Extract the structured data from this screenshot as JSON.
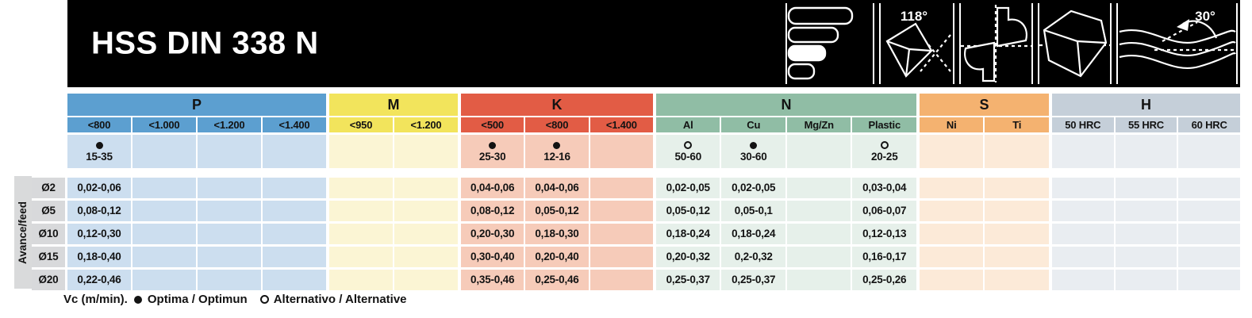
{
  "header": {
    "title": "HSS DIN 338 N",
    "icon_labels": {
      "point_angle": "118°",
      "helix_angle": "30°"
    }
  },
  "row_axis": {
    "label": "Avance/feed",
    "diameters": [
      "Ø2",
      "Ø5",
      "Ø10",
      "Ø15",
      "Ø20"
    ]
  },
  "vc_note": "Vc (m/min).",
  "legend": {
    "optima_marker": "filled-dot",
    "optima_label": "Optima / Optimun",
    "alternative_marker": "open-dot",
    "alternative_label": "Alternativo / Alternative"
  },
  "materials_table": {
    "groups": [
      {
        "name": "P",
        "header_color": "#5c9fd0",
        "body_color": "#ccdeef",
        "columns": [
          "<800",
          "<1.000",
          "<1.200",
          "<1.400"
        ],
        "vc": [
          {
            "marker": "filled-dot",
            "value": "15-35"
          },
          null,
          null,
          null
        ],
        "rows": [
          [
            "0,02-0,06",
            "",
            "",
            ""
          ],
          [
            "0,08-0,12",
            "",
            "",
            ""
          ],
          [
            "0,12-0,30",
            "",
            "",
            ""
          ],
          [
            "0,18-0,40",
            "",
            "",
            ""
          ],
          [
            "0,22-0,46",
            "",
            "",
            ""
          ]
        ]
      },
      {
        "name": "M",
        "header_color": "#f2e45c",
        "body_color": "#fbf5d4",
        "columns": [
          "<950",
          "<1.200"
        ],
        "vc": [
          null,
          null
        ],
        "rows": [
          [
            "",
            ""
          ],
          [
            "",
            ""
          ],
          [
            "",
            ""
          ],
          [
            "",
            ""
          ],
          [
            "",
            ""
          ]
        ]
      },
      {
        "name": "K",
        "header_color": "#e25c45",
        "body_color": "#f6cbb9",
        "columns": [
          "<500",
          "<800",
          "<1.400"
        ],
        "vc": [
          {
            "marker": "filled-dot",
            "value": "25-30"
          },
          {
            "marker": "filled-dot",
            "value": "12-16"
          },
          null
        ],
        "rows": [
          [
            "0,04-0,06",
            "0,04-0,06",
            ""
          ],
          [
            "0,08-0,12",
            "0,05-0,12",
            ""
          ],
          [
            "0,20-0,30",
            "0,18-0,30",
            ""
          ],
          [
            "0,30-0,40",
            "0,20-0,40",
            ""
          ],
          [
            "0,35-0,46",
            "0,25-0,46",
            ""
          ]
        ]
      },
      {
        "name": "N",
        "header_color": "#90bda5",
        "body_color": "#e6f0ea",
        "columns": [
          "Al",
          "Cu",
          "Mg/Zn",
          "Plastic"
        ],
        "vc": [
          {
            "marker": "open-dot",
            "value": "50-60"
          },
          {
            "marker": "filled-dot",
            "value": "30-60"
          },
          null,
          {
            "marker": "open-dot",
            "value": "20-25"
          }
        ],
        "rows": [
          [
            "0,02-0,05",
            "0,02-0,05",
            "",
            "0,03-0,04"
          ],
          [
            "0,05-0,12",
            "0,05-0,1",
            "",
            "0,06-0,07"
          ],
          [
            "0,18-0,24",
            "0,18-0,24",
            "",
            "0,12-0,13"
          ],
          [
            "0,20-0,32",
            "0,2-0,32",
            "",
            "0,16-0,17"
          ],
          [
            "0,25-0,37",
            "0,25-0,37",
            "",
            "0,25-0,26"
          ]
        ]
      },
      {
        "name": "S",
        "header_color": "#f4b270",
        "body_color": "#fcead8",
        "columns": [
          "Ni",
          "Ti"
        ],
        "vc": [
          null,
          null
        ],
        "rows": [
          [
            "",
            ""
          ],
          [
            "",
            ""
          ],
          [
            "",
            ""
          ],
          [
            "",
            ""
          ],
          [
            "",
            ""
          ]
        ]
      },
      {
        "name": "H",
        "header_color": "#c5cfd9",
        "body_color": "#e9edf1",
        "columns": [
          "50 HRC",
          "55 HRC",
          "60 HRC"
        ],
        "vc": [
          null,
          null,
          null
        ],
        "rows": [
          [
            "",
            "",
            ""
          ],
          [
            "",
            "",
            ""
          ],
          [
            "",
            "",
            ""
          ],
          [
            "",
            "",
            ""
          ],
          [
            "",
            "",
            ""
          ]
        ]
      }
    ]
  }
}
